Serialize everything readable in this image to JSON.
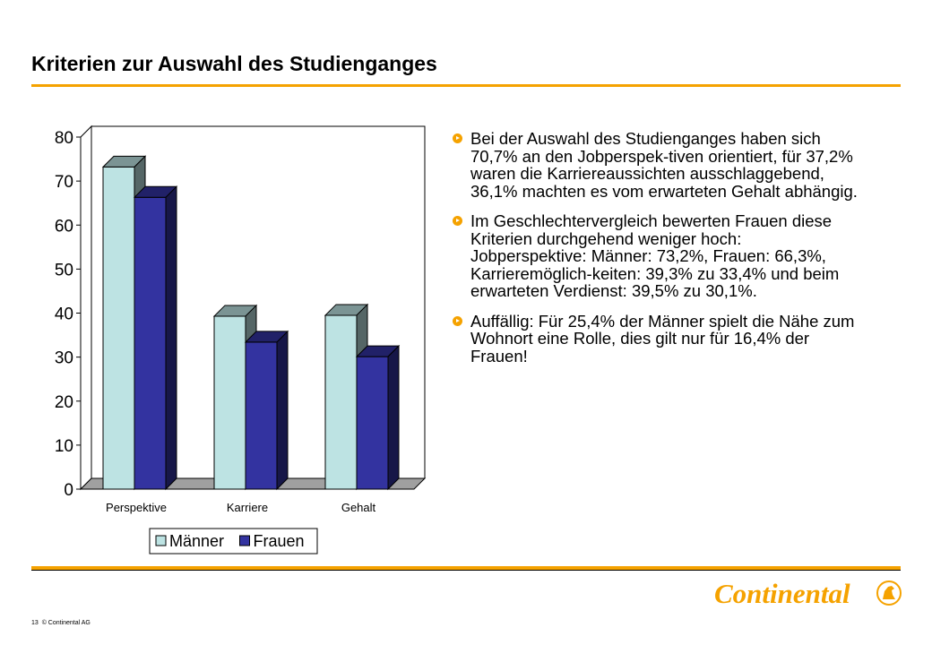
{
  "title": "Kriterien zur Auswahl des Studienganges",
  "chart_data": {
    "type": "bar",
    "categories": [
      "Perspektive",
      "Karriere",
      "Gehalt"
    ],
    "series": [
      {
        "name": "Männer",
        "values": [
          73.2,
          39.3,
          39.5
        ],
        "color": "#bde3e3"
      },
      {
        "name": "Frauen",
        "values": [
          66.3,
          33.4,
          30.1
        ],
        "color": "#3333a0"
      }
    ],
    "yticks": [
      0,
      10,
      20,
      30,
      40,
      50,
      60,
      70,
      80
    ],
    "ylim": [
      0,
      80
    ],
    "grid": false,
    "legend_position": "bottom",
    "style": "3d"
  },
  "bullets": [
    "Bei der Auswahl des Studienganges haben sich 70,7% an den Jobperspek-tiven orientiert, für 37,2% waren die Karriereaussichten ausschlaggebend, 36,1% machten es vom erwarteten Gehalt abhängig.",
    "Im Geschlechtervergleich bewerten Frauen diese Kriterien durchgehend weniger hoch: Jobperspektive: Männer: 73,2%, Frauen: 66,3%, Karrieremöglich-keiten: 39,3% zu 33,4% und beim erwarteten Verdienst: 39,5% zu 30,1%.",
    "Auffällig: Für 25,4% der Männer spielt die Nähe zum Wohnort eine Rolle, dies gilt nur für 16,4% der Frauen!"
  ],
  "footer": {
    "page": "13",
    "copyright": "© Continental AG"
  },
  "logo": {
    "text": "Continental",
    "color": "#f5a200"
  }
}
